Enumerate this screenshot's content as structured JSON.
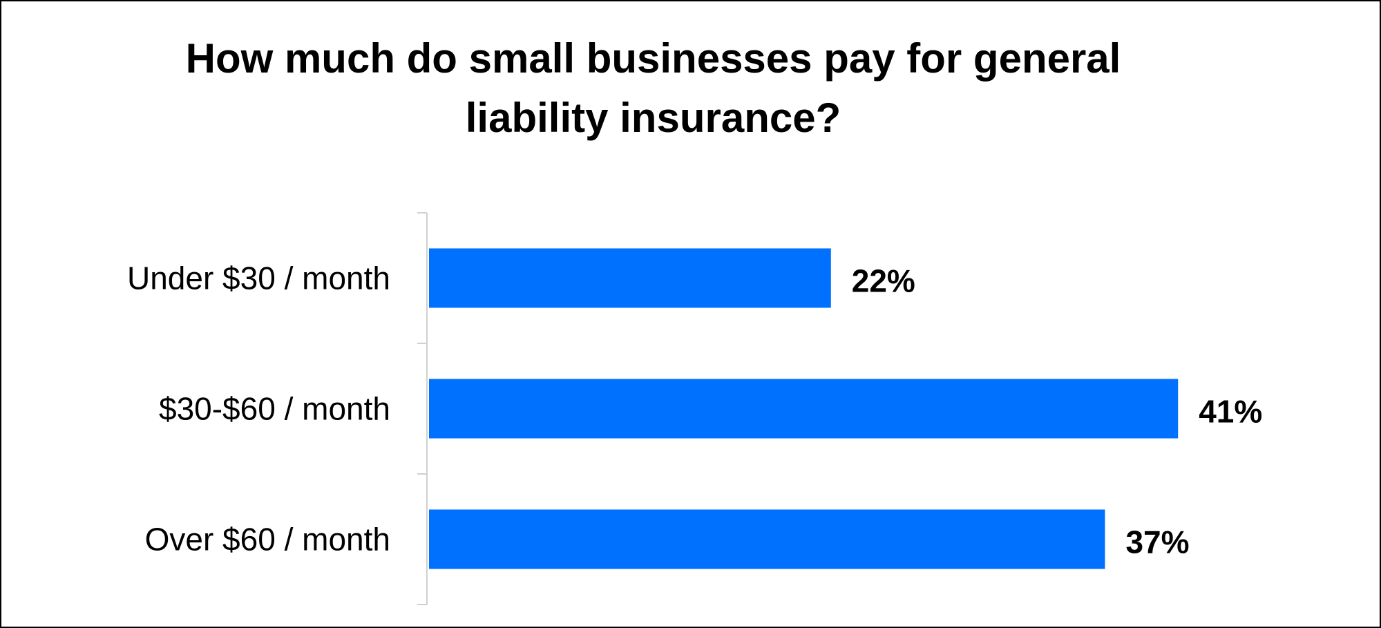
{
  "chart_data": {
    "type": "bar",
    "orientation": "horizontal",
    "title_lines": [
      "How much do small businesses pay for general",
      "liability insurance?"
    ],
    "categories": [
      "Under $30 / month",
      "$30-$60 / month",
      "Over $60 / month"
    ],
    "values": [
      22,
      41,
      37
    ],
    "value_labels": [
      "22%",
      "41%",
      "37%"
    ],
    "xlim": [
      0,
      45
    ],
    "grid": false,
    "legend": "none",
    "colors": {
      "bar": "#0070FF",
      "axis": "#D0D0D0",
      "text": "#000000",
      "border": "#000000"
    }
  }
}
